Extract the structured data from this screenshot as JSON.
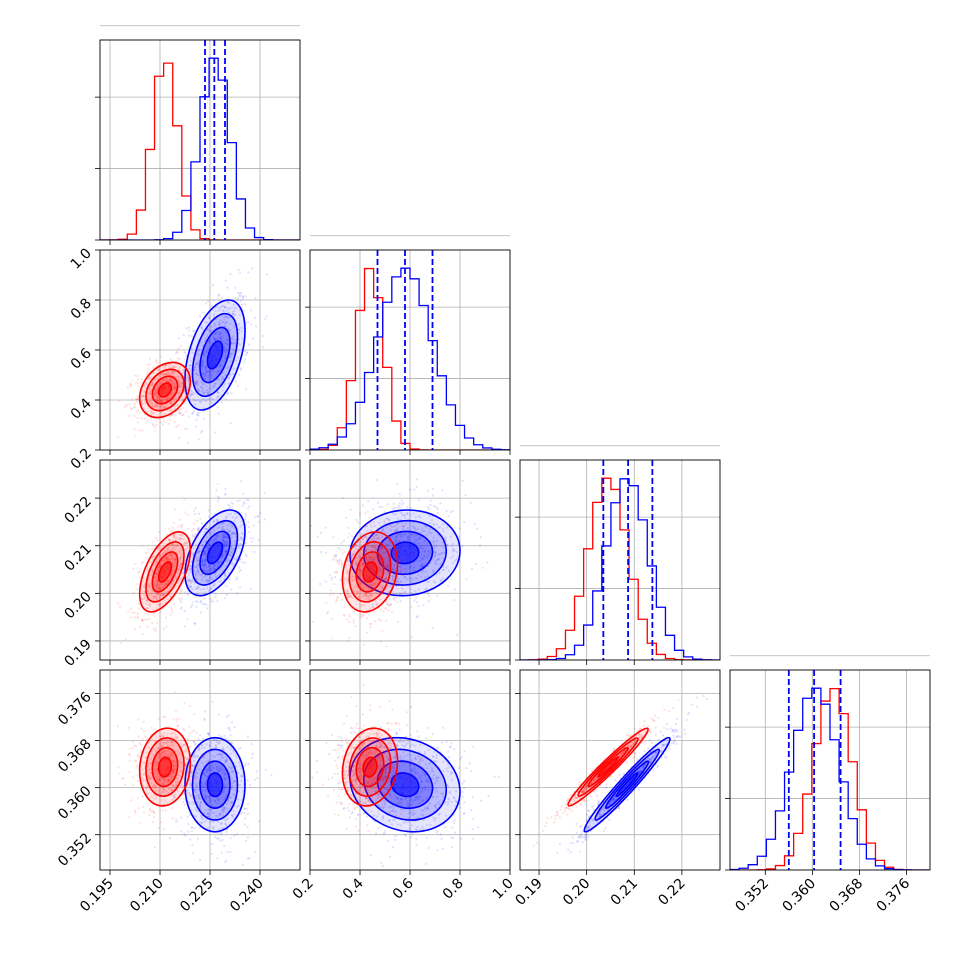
{
  "chart_data": {
    "type": "corner",
    "title": "",
    "grid": true,
    "colors": {
      "red": "#ff0000",
      "blue": "#0000ff"
    },
    "parameters": [
      {
        "range": [
          0.192,
          0.252
        ],
        "ticks": [
          "0.195",
          "0.210",
          "0.225",
          "0.240"
        ],
        "tick_values": [
          0.195,
          0.21,
          0.225,
          0.24
        ]
      },
      {
        "range": [
          0.2,
          1.0
        ],
        "ticks": [
          "0.2",
          "0.4",
          "0.6",
          "0.8",
          "1.0"
        ],
        "tick_values": [
          0.2,
          0.4,
          0.6,
          0.8,
          1.0
        ]
      },
      {
        "range": [
          0.186,
          0.228
        ],
        "ticks": [
          "0.19",
          "0.20",
          "0.21",
          "0.22"
        ],
        "tick_values": [
          0.19,
          0.2,
          0.21,
          0.22
        ]
      },
      {
        "range": [
          0.346,
          0.38
        ],
        "ticks": [
          "0.352",
          "0.360",
          "0.368",
          "0.376"
        ],
        "tick_values": [
          0.352,
          0.36,
          0.368,
          0.376
        ]
      }
    ],
    "series": [
      {
        "color": "#ff0000",
        "means": [
          0.2115,
          0.44,
          0.2045,
          0.3635
        ],
        "sigmas": [
          0.0038,
          0.055,
          0.0042,
          0.0033
        ],
        "correlations": [
          [
            0,
            1,
            0.3
          ],
          [
            0,
            2,
            0.55
          ],
          [
            0,
            3,
            0.1
          ],
          [
            1,
            2,
            0.2
          ],
          [
            1,
            3,
            0.15
          ],
          [
            2,
            3,
            0.97
          ]
        ]
      },
      {
        "color": "#0000ff",
        "means": [
          0.2265,
          0.58,
          0.2085,
          0.3605
        ],
        "sigmas": [
          0.0045,
          0.11,
          0.0045,
          0.004
        ],
        "quantiles": [
          [
            0.2235,
            0.2263,
            0.2295
          ],
          [
            0.47,
            0.58,
            0.69
          ],
          [
            0.2035,
            0.2087,
            0.2138
          ],
          [
            0.356,
            0.3603,
            0.3648
          ]
        ],
        "correlations": [
          [
            0,
            1,
            0.45
          ],
          [
            0,
            2,
            0.5
          ],
          [
            0,
            3,
            0.0
          ],
          [
            1,
            2,
            0.05
          ],
          [
            1,
            3,
            -0.15
          ],
          [
            2,
            3,
            0.97
          ]
        ]
      }
    ]
  }
}
